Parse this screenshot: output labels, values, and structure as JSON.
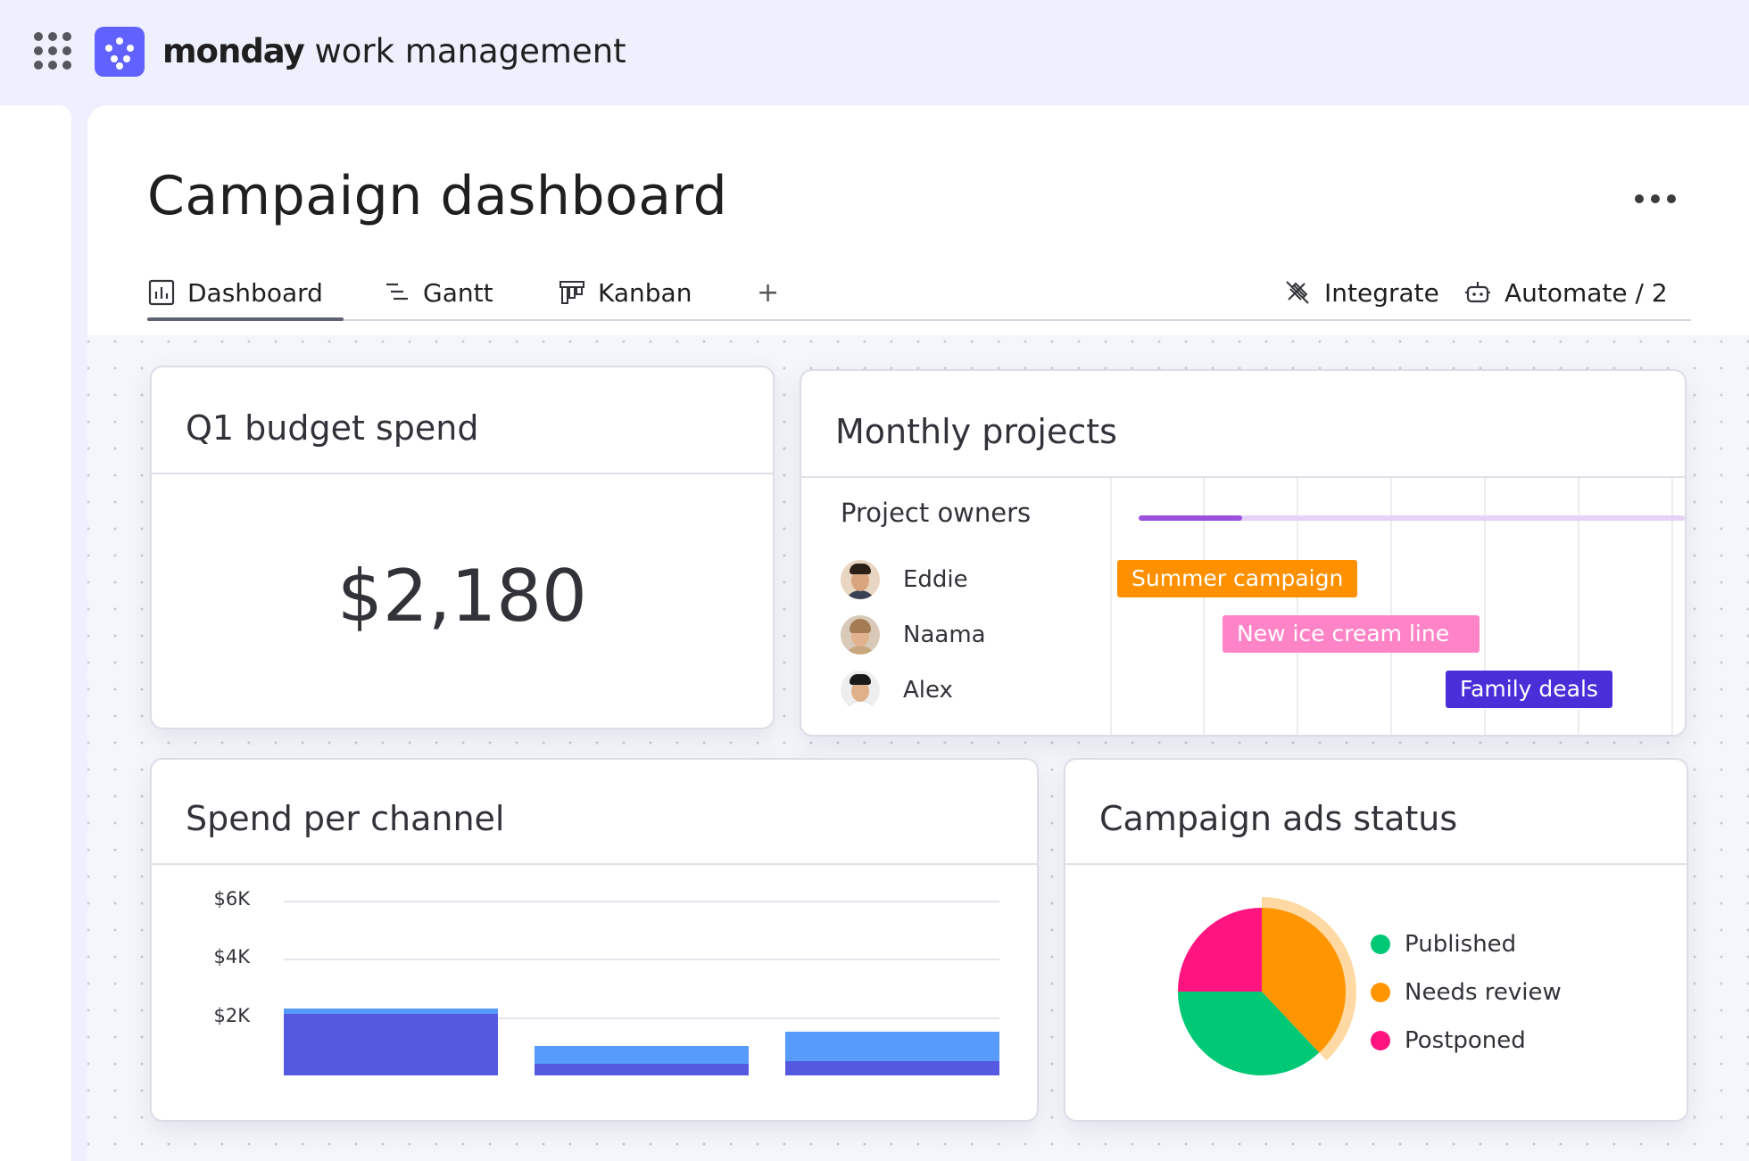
{
  "header": {
    "brand_bold": "monday",
    "brand_rest": " work management",
    "apps_icon": "grid-dots-icon",
    "logo_icon": "monday-logo-icon"
  },
  "page": {
    "title": "Campaign dashboard",
    "more_icon": "more-horizontal-icon"
  },
  "tabs": [
    {
      "label": "Dashboard",
      "icon": "dashboard-chart-icon",
      "active": true
    },
    {
      "label": "Gantt",
      "icon": "gantt-icon"
    },
    {
      "label": "Kanban",
      "icon": "kanban-icon"
    },
    {
      "label": "+",
      "icon": "plus-icon"
    }
  ],
  "actions": {
    "integrate": "Integrate",
    "automate": "Automate / 2"
  },
  "budget_card": {
    "title": "Q1 budget spend",
    "value": "$2,180"
  },
  "projects_card": {
    "title": "Monthly projects",
    "owners_label": "Project owners",
    "progress": 0.19,
    "owners": [
      {
        "name": "Eddie",
        "project": "Summer campaign",
        "color": "#ff9100"
      },
      {
        "name": "Naama",
        "project": "New ice cream line",
        "color": "#ff84c7"
      },
      {
        "name": "Alex",
        "project": "Family deals",
        "color": "#4a2fd9"
      }
    ]
  },
  "channel_card": {
    "title": "Spend per channel"
  },
  "status_card": {
    "title": "Campaign ads status"
  },
  "chart_data": [
    {
      "type": "bar",
      "title": "Spend per channel",
      "categories": [
        "",
        "",
        ""
      ],
      "yticks": [
        "$6K",
        "$4K",
        "$2K"
      ],
      "ylim": [
        0,
        6000
      ],
      "stacked": true,
      "series": [
        {
          "values": [
            2100,
            400,
            500
          ],
          "color": "#5559df"
        },
        {
          "values": [
            200,
            600,
            1000
          ],
          "color": "#579bfc"
        }
      ],
      "grid": true
    },
    {
      "type": "pie",
      "title": "Campaign ads status",
      "legend": "right",
      "slices": [
        {
          "label": "Published",
          "value": 37,
          "color": "#00c875"
        },
        {
          "label": "Needs review",
          "value": 38,
          "color": "#ff9500"
        },
        {
          "label": "Postponed",
          "value": 25,
          "color": "#ff1480"
        }
      ]
    }
  ]
}
